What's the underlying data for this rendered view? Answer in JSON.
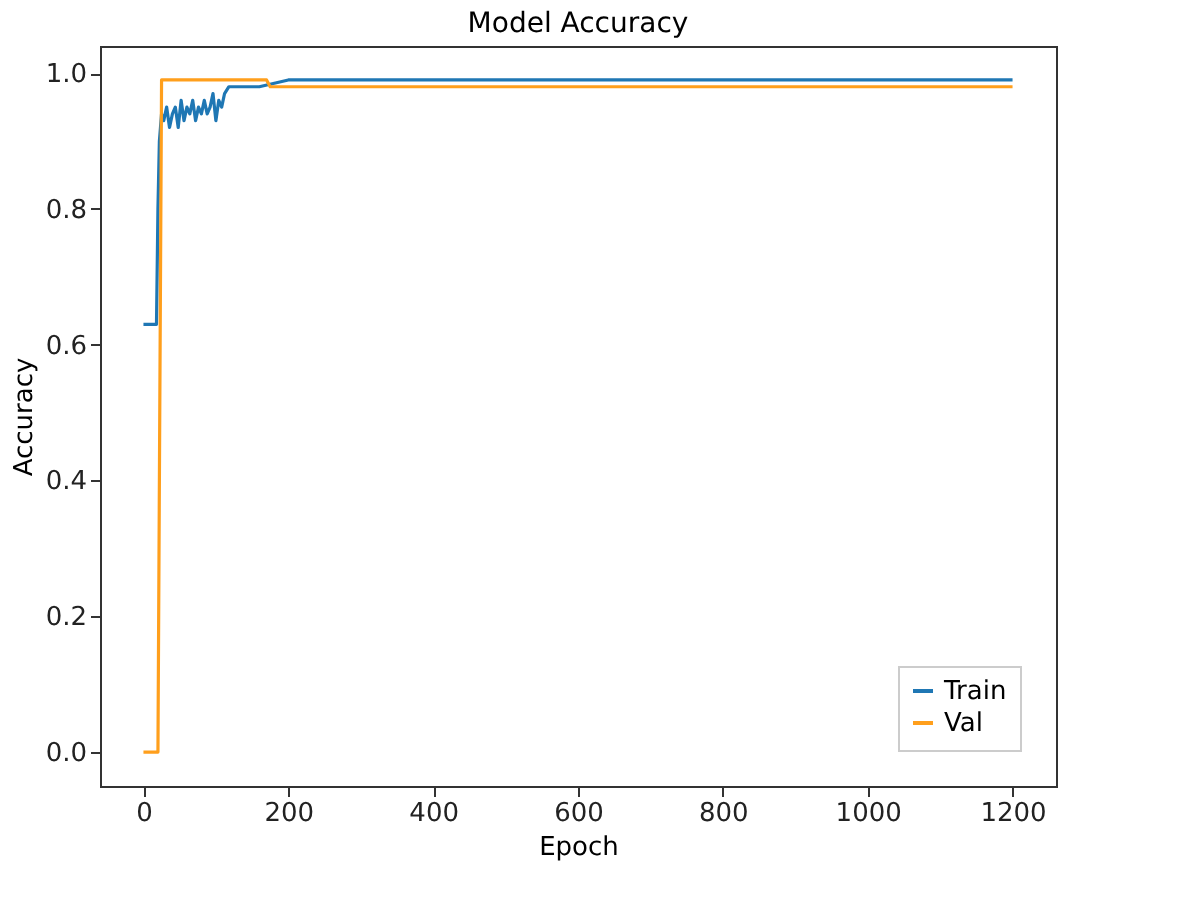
{
  "chart_data": {
    "type": "line",
    "title": "Model Accuracy",
    "xlabel": "Epoch",
    "ylabel": "Accuracy",
    "xlim": [
      -60,
      1260
    ],
    "xticks": [
      0,
      200,
      400,
      600,
      800,
      1000,
      1200
    ],
    "ylim": [
      -0.05,
      1.04
    ],
    "yticks": [
      {
        "value": 0,
        "label": "0.0"
      },
      0.2,
      0.4,
      0.6,
      0.8,
      {
        "value": 1,
        "label": "1.0"
      }
    ],
    "grid": false,
    "legend": "bottom right",
    "series": [
      {
        "name": "Train",
        "color": "#1f77b4",
        "x": [
          0,
          18,
          20,
          22,
          25,
          28,
          32,
          36,
          40,
          44,
          48,
          52,
          56,
          60,
          64,
          68,
          72,
          76,
          80,
          84,
          88,
          92,
          96,
          100,
          104,
          108,
          112,
          118,
          125,
          140,
          160,
          200,
          300,
          400,
          500,
          600,
          700,
          800,
          900,
          1000,
          1100,
          1200
        ],
        "values": [
          0.63,
          0.63,
          0.8,
          0.9,
          0.94,
          0.93,
          0.95,
          0.92,
          0.94,
          0.95,
          0.92,
          0.96,
          0.93,
          0.95,
          0.94,
          0.96,
          0.93,
          0.95,
          0.94,
          0.96,
          0.94,
          0.95,
          0.97,
          0.93,
          0.96,
          0.95,
          0.97,
          0.98,
          0.98,
          0.98,
          0.98,
          0.99,
          0.99,
          0.99,
          0.99,
          0.99,
          0.99,
          0.99,
          0.99,
          0.99,
          0.99,
          0.99
        ]
      },
      {
        "name": "Val",
        "color": "#ff9f1c",
        "x": [
          0,
          20,
          25,
          100,
          170,
          175,
          400,
          800,
          1200
        ],
        "values": [
          0.0,
          0.0,
          0.99,
          0.99,
          0.99,
          0.98,
          0.98,
          0.98,
          0.98
        ]
      }
    ]
  }
}
